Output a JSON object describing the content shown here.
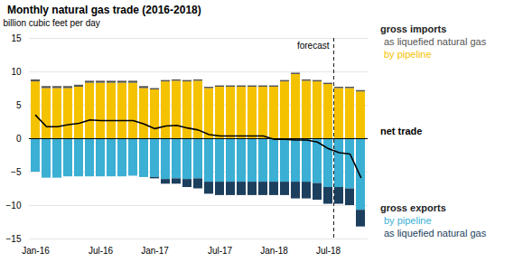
{
  "chart_data": {
    "type": "bar",
    "stacked": true,
    "title": "Monthly natural gas trade (2016-2018)",
    "ylabel": "billion cubic feet per day",
    "categories": [
      "Jan-16",
      null,
      null,
      null,
      null,
      null,
      "Jul-16",
      null,
      null,
      null,
      null,
      "Jan-17",
      null,
      null,
      null,
      null,
      null,
      "Jul-17",
      null,
      null,
      null,
      null,
      "Jan-18",
      null,
      null,
      null,
      null,
      "Jul-18",
      null,
      null,
      null
    ],
    "series": [
      {
        "name": "by pipeline",
        "color": "#f5c200",
        "type": "bar",
        "values": [
          8.5,
          7.5,
          7.5,
          7.5,
          7.7,
          8.3,
          8.3,
          8.3,
          8.3,
          8.3,
          7.5,
          7.3,
          8.5,
          8.6,
          8.5,
          8.6,
          7.5,
          7.7,
          7.7,
          7.7,
          7.7,
          7.7,
          7.7,
          8.5,
          9.6,
          8.6,
          8.5,
          8.1,
          7.5,
          7.5,
          7.0
        ]
      },
      {
        "name": "as liquefied natural gas",
        "color": "#555555",
        "type": "bar",
        "values": [
          0.3,
          0.3,
          0.3,
          0.3,
          0.3,
          0.3,
          0.3,
          0.3,
          0.3,
          0.3,
          0.3,
          0.2,
          0.2,
          0.2,
          0.2,
          0.2,
          0.2,
          0.2,
          0.2,
          0.2,
          0.2,
          0.2,
          0.2,
          0.2,
          0.2,
          0.2,
          0.2,
          0.2,
          0.2,
          0.2,
          0.2
        ]
      },
      {
        "name": "by pipeline",
        "color": "#3bafd4",
        "type": "bar",
        "values": [
          -5.0,
          -5.9,
          -5.9,
          -5.7,
          -5.7,
          -5.7,
          -5.7,
          -5.7,
          -5.7,
          -5.6,
          -5.8,
          -5.8,
          -6.1,
          -6.0,
          -6.1,
          -6.0,
          -6.5,
          -6.5,
          -6.5,
          -6.5,
          -6.5,
          -6.5,
          -6.5,
          -6.5,
          -6.5,
          -6.5,
          -6.7,
          -7.3,
          -7.3,
          -7.5,
          -10.7
        ]
      },
      {
        "name": "as liquefied natural gas",
        "color": "#1c3f5e",
        "type": "bar",
        "values": [
          0.0,
          0.0,
          0.0,
          0.0,
          0.0,
          0.0,
          0.0,
          0.0,
          0.0,
          0.0,
          0.0,
          -0.2,
          -0.7,
          -0.8,
          -1.2,
          -1.5,
          -1.8,
          -2.0,
          -2.0,
          -2.0,
          -2.0,
          -2.0,
          -2.0,
          -2.0,
          -2.5,
          -2.5,
          -2.5,
          -2.5,
          -2.5,
          -2.5,
          -2.5
        ]
      },
      {
        "name": "net trade",
        "color": "#000000",
        "type": "line",
        "values": [
          3.5,
          1.8,
          1.8,
          2.1,
          2.3,
          2.8,
          2.7,
          2.7,
          2.7,
          2.7,
          2.2,
          1.5,
          1.9,
          2.0,
          1.6,
          1.3,
          0.6,
          0.4,
          0.4,
          0.4,
          0.4,
          0.4,
          -0.1,
          -0.1,
          -0.2,
          -0.2,
          -0.5,
          -1.5,
          -2.1,
          -2.3,
          -5.8
        ]
      }
    ],
    "annotations": [
      {
        "text": "forecast",
        "x": 27.5,
        "line_style": "dashed"
      },
      {
        "text": "gross imports"
      },
      {
        "text": "gross exports"
      }
    ],
    "ylim": [
      -15,
      15
    ],
    "yticks": [
      -15,
      -10,
      -5,
      0,
      5,
      10,
      15
    ],
    "grid": true
  }
}
